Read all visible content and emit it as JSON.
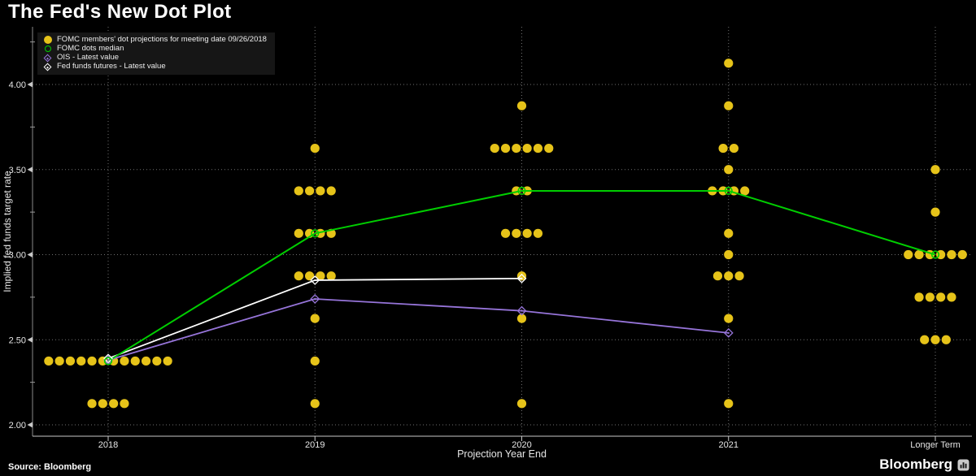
{
  "title": "The Fed's New Dot Plot",
  "source_label": "Source: Bloomberg",
  "brand": {
    "name": "Bloomberg",
    "icon": "bar-chart-icon"
  },
  "colors": {
    "background": "#000000",
    "dot": "#E6C319",
    "median": "#00CE00",
    "ois": "#9674D9",
    "futures": "#FFFFFF",
    "grid": "#707070",
    "axis": "#C8C8C8",
    "axis_y": "#8A8A8A",
    "tick_text": "#E6E6E6",
    "legend_bg": "#161616"
  },
  "legend": {
    "items": [
      {
        "label": "FOMC members' dot projections for meeting date 09/26/2018",
        "marker": "filled-circle",
        "color": "#E6C319"
      },
      {
        "label": "FOMC dots median",
        "marker": "open-circle",
        "color": "#00CE00"
      },
      {
        "label": "OIS - Latest value",
        "marker": "open-diamond",
        "color": "#9674D9"
      },
      {
        "label": "Fed funds futures - Latest value",
        "marker": "open-diamond",
        "color": "#FFFFFF"
      }
    ]
  },
  "chart_data": {
    "type": "scatter",
    "title": "The Fed's New Dot Plot",
    "xlabel": "Projection Year End",
    "ylabel": "Implied fed funds target rate",
    "categories": [
      "2018",
      "2019",
      "2020",
      "2021",
      "Longer Term"
    ],
    "ylim": [
      1.93,
      4.34
    ],
    "grid": "dotted",
    "legend_position": "top-left",
    "yticks": [
      {
        "value": 2.0,
        "label": "2.00"
      },
      {
        "value": 2.5,
        "label": "2.50"
      },
      {
        "value": 3.0,
        "label": "3.00"
      },
      {
        "value": 3.5,
        "label": "3.50"
      },
      {
        "value": 4.0,
        "label": "4.00"
      }
    ],
    "yticks_minor": [
      2.25,
      2.75,
      3.25,
      3.75,
      4.25
    ],
    "dot_clusters": [
      {
        "category": "2018",
        "rows": [
          {
            "value": 2.375,
            "count": 12
          },
          {
            "value": 2.125,
            "count": 4
          }
        ]
      },
      {
        "category": "2019",
        "rows": [
          {
            "value": 3.625,
            "count": 1
          },
          {
            "value": 3.375,
            "count": 4
          },
          {
            "value": 3.125,
            "count": 4
          },
          {
            "value": 2.875,
            "count": 4
          },
          {
            "value": 2.625,
            "count": 1
          },
          {
            "value": 2.375,
            "count": 1
          },
          {
            "value": 2.125,
            "count": 1
          }
        ]
      },
      {
        "category": "2020",
        "rows": [
          {
            "value": 3.875,
            "count": 1
          },
          {
            "value": 3.625,
            "count": 6
          },
          {
            "value": 3.375,
            "count": 2
          },
          {
            "value": 3.125,
            "count": 4
          },
          {
            "value": 2.875,
            "count": 1
          },
          {
            "value": 2.625,
            "count": 1
          },
          {
            "value": 2.125,
            "count": 1
          }
        ]
      },
      {
        "category": "2021",
        "rows": [
          {
            "value": 4.125,
            "count": 1
          },
          {
            "value": 3.875,
            "count": 1
          },
          {
            "value": 3.625,
            "count": 2
          },
          {
            "value": 3.5,
            "count": 1
          },
          {
            "value": 3.375,
            "count": 4
          },
          {
            "value": 3.125,
            "count": 1
          },
          {
            "value": 3.0,
            "count": 1
          },
          {
            "value": 2.875,
            "count": 3
          },
          {
            "value": 2.625,
            "count": 1
          },
          {
            "value": 2.125,
            "count": 1
          }
        ]
      },
      {
        "category": "Longer Term",
        "rows": [
          {
            "value": 3.5,
            "count": 1
          },
          {
            "value": 3.25,
            "count": 1
          },
          {
            "value": 3.0,
            "count": 6
          },
          {
            "value": 2.75,
            "count": 4
          },
          {
            "value": 2.5,
            "count": 3
          }
        ]
      }
    ],
    "series": [
      {
        "name": "FOMC dots median",
        "marker": "open-circle",
        "color_key": "median",
        "points": [
          {
            "category": "2018",
            "value": 2.375
          },
          {
            "category": "2019",
            "value": 3.125
          },
          {
            "category": "2020",
            "value": 3.375
          },
          {
            "category": "2021",
            "value": 3.375
          },
          {
            "category": "Longer Term",
            "value": 3.0
          }
        ]
      },
      {
        "name": "OIS - Latest value",
        "marker": "open-diamond",
        "color_key": "ois",
        "points": [
          {
            "category": "2018",
            "value": 2.38
          },
          {
            "category": "2019",
            "value": 2.74
          },
          {
            "category": "2020",
            "value": 2.67
          },
          {
            "category": "2021",
            "value": 2.54
          }
        ]
      },
      {
        "name": "Fed funds futures - Latest value",
        "marker": "open-diamond",
        "color_key": "futures",
        "points": [
          {
            "category": "2018",
            "value": 2.39
          },
          {
            "category": "2019",
            "value": 2.85
          },
          {
            "category": "2020",
            "value": 2.86
          }
        ]
      }
    ]
  }
}
